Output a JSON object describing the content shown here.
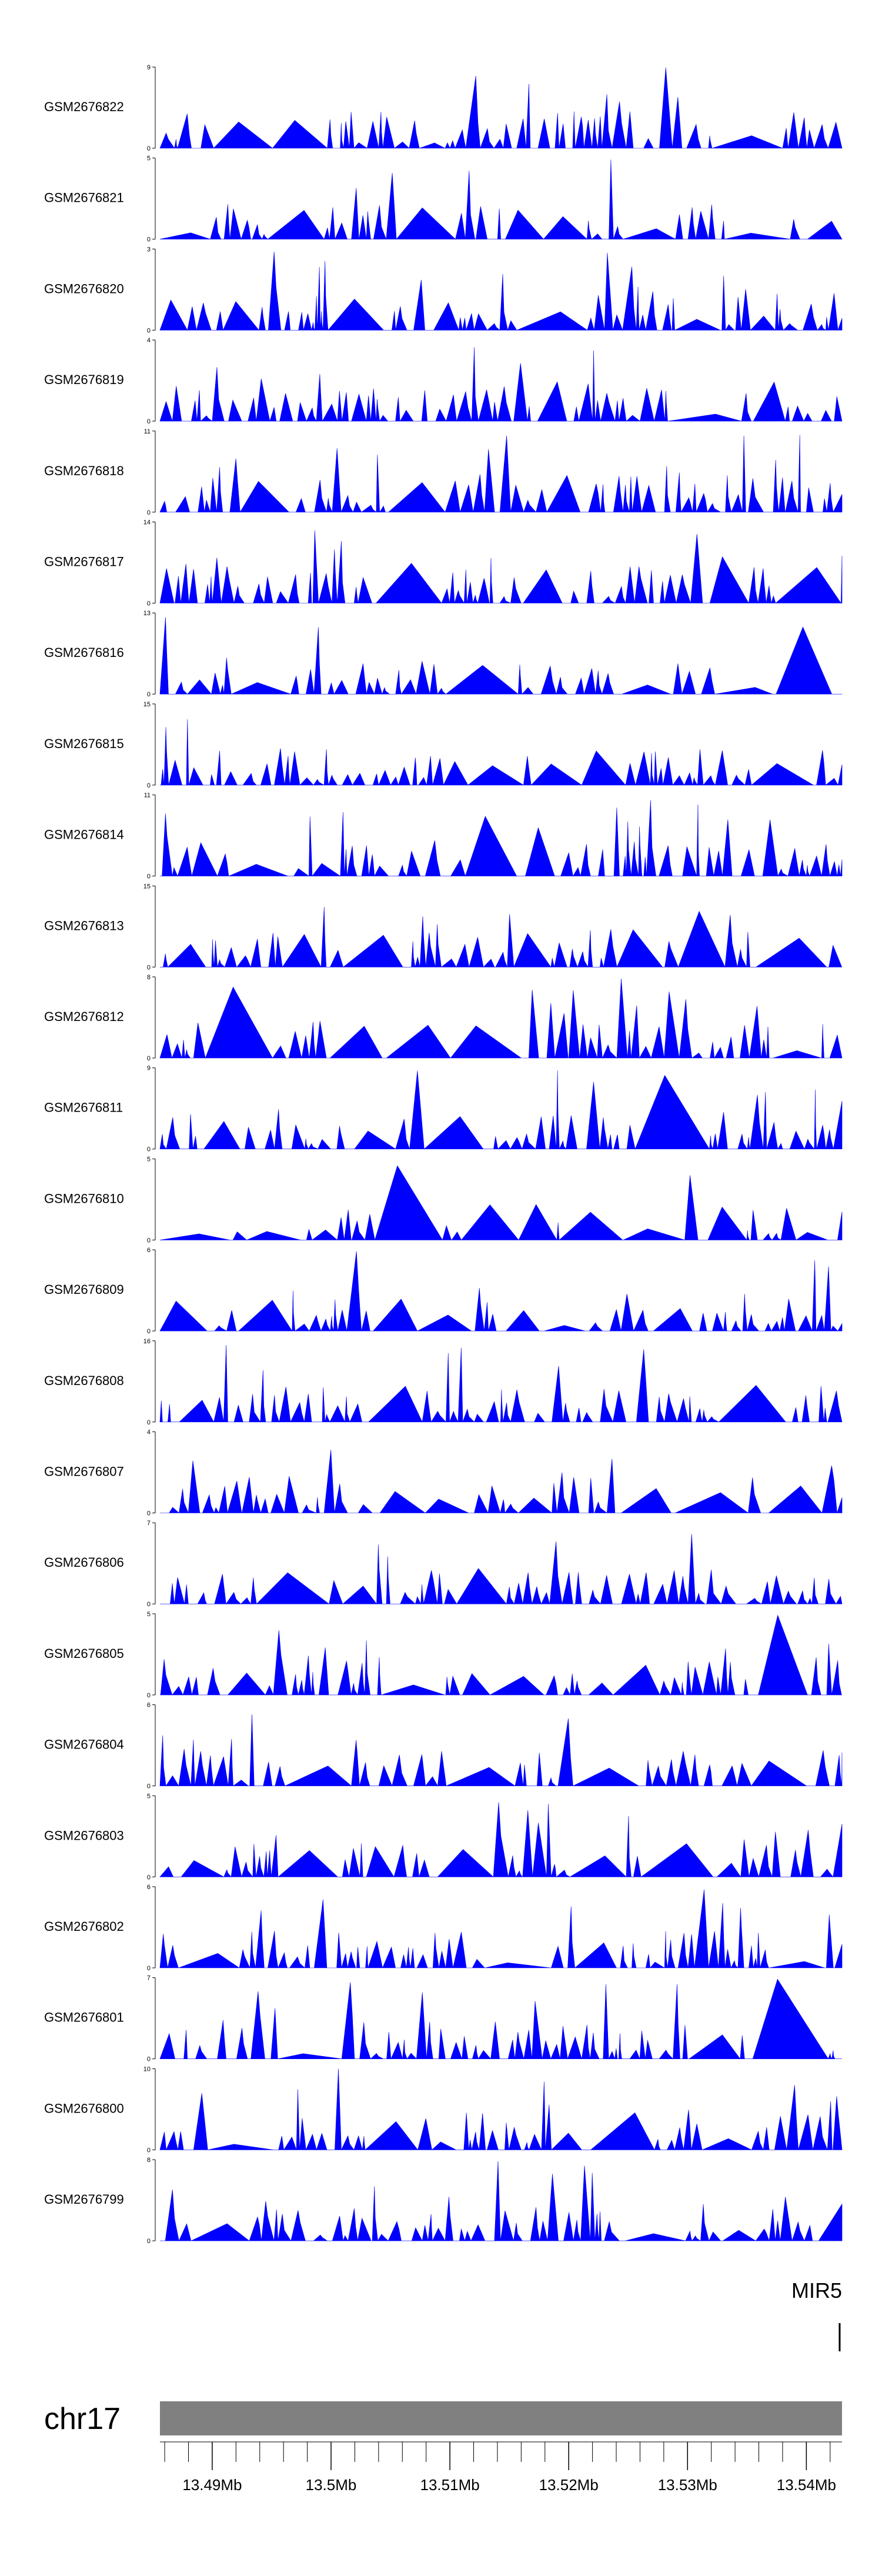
{
  "chart_data": {
    "type": "area",
    "description_type": "genome browser coverage tracks",
    "fill_color": "#0000ff",
    "chromosome": "chr17",
    "gene": {
      "name": "MIR5",
      "position_mb": 13.5428
    },
    "region_mb": [
      13.4856,
      13.543
    ],
    "ideogram_color": "#808080",
    "axis_ticks": [
      {
        "value": 13.49,
        "label": "13.49Mb"
      },
      {
        "value": 13.5,
        "label": "13.5Mb"
      },
      {
        "value": 13.51,
        "label": "13.51Mb"
      },
      {
        "value": 13.52,
        "label": "13.52Mb"
      },
      {
        "value": 13.53,
        "label": "13.53Mb"
      },
      {
        "value": 13.54,
        "label": "13.54Mb"
      }
    ],
    "tracks": [
      {
        "name": "GSM2676822",
        "ymax": 9,
        "seed": 22
      },
      {
        "name": "GSM2676821",
        "ymax": 5,
        "seed": 21
      },
      {
        "name": "GSM2676820",
        "ymax": 3,
        "seed": 20
      },
      {
        "name": "GSM2676819",
        "ymax": 4,
        "seed": 19
      },
      {
        "name": "GSM2676818",
        "ymax": 11,
        "seed": 18
      },
      {
        "name": "GSM2676817",
        "ymax": 14,
        "seed": 17
      },
      {
        "name": "GSM2676816",
        "ymax": 13,
        "seed": 16
      },
      {
        "name": "GSM2676815",
        "ymax": 15,
        "seed": 15
      },
      {
        "name": "GSM2676814",
        "ymax": 11,
        "seed": 14
      },
      {
        "name": "GSM2676813",
        "ymax": 15,
        "seed": 13
      },
      {
        "name": "GSM2676812",
        "ymax": 8,
        "seed": 12
      },
      {
        "name": "GSM2676811",
        "ymax": 9,
        "seed": 11
      },
      {
        "name": "GSM2676810",
        "ymax": 5,
        "seed": 10
      },
      {
        "name": "GSM2676809",
        "ymax": 6,
        "seed": 9
      },
      {
        "name": "GSM2676808",
        "ymax": 16,
        "seed": 8
      },
      {
        "name": "GSM2676807",
        "ymax": 4,
        "seed": 7
      },
      {
        "name": "GSM2676806",
        "ymax": 7,
        "seed": 6
      },
      {
        "name": "GSM2676805",
        "ymax": 5,
        "seed": 5
      },
      {
        "name": "GSM2676804",
        "ymax": 6,
        "seed": 4
      },
      {
        "name": "GSM2676803",
        "ymax": 5,
        "seed": 3
      },
      {
        "name": "GSM2676802",
        "ymax": 6,
        "seed": 2
      },
      {
        "name": "GSM2676801",
        "ymax": 7,
        "seed": 1
      },
      {
        "name": "GSM2676800",
        "ymax": 10,
        "seed": 100
      },
      {
        "name": "GSM2676799",
        "ymax": 8,
        "seed": 99
      }
    ]
  }
}
